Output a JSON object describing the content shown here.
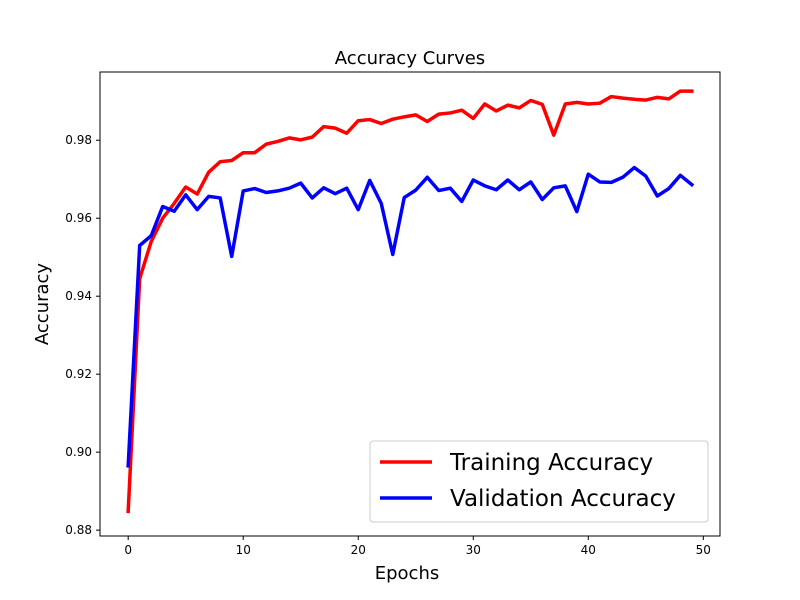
{
  "chart_data": {
    "type": "line",
    "title": "Accuracy Curves",
    "xlabel": "Epochs",
    "ylabel": "Accuracy",
    "xlim": [
      -2.45,
      51.45
    ],
    "ylim": [
      0.8785,
      0.9975
    ],
    "x_ticks": [
      0,
      10,
      20,
      30,
      40,
      50
    ],
    "y_ticks": [
      0.88,
      0.9,
      0.92,
      0.94,
      0.96,
      0.98
    ],
    "y_tick_labels": [
      "0.88",
      "0.90",
      "0.92",
      "0.94",
      "0.96",
      "0.98"
    ],
    "grid": false,
    "legend_position": "lower-right",
    "x": [
      0,
      1,
      2,
      3,
      4,
      5,
      6,
      7,
      8,
      9,
      10,
      11,
      12,
      13,
      14,
      15,
      16,
      17,
      18,
      19,
      20,
      21,
      22,
      23,
      24,
      25,
      26,
      27,
      28,
      29,
      30,
      31,
      32,
      33,
      34,
      35,
      36,
      37,
      38,
      39,
      40,
      41,
      42,
      43,
      44,
      45,
      46,
      47,
      48,
      49
    ],
    "series": [
      {
        "name": "Training Accuracy",
        "color": "#ff0000",
        "values": [
          0.8848,
          0.9445,
          0.954,
          0.96,
          0.9638,
          0.968,
          0.9662,
          0.9718,
          0.9745,
          0.9748,
          0.9768,
          0.9768,
          0.979,
          0.9797,
          0.9806,
          0.9801,
          0.9808,
          0.9835,
          0.9831,
          0.9818,
          0.985,
          0.9853,
          0.9843,
          0.9854,
          0.986,
          0.9865,
          0.9848,
          0.9867,
          0.987,
          0.9877,
          0.9856,
          0.9893,
          0.9875,
          0.989,
          0.9883,
          0.9902,
          0.9892,
          0.9813,
          0.9893,
          0.9897,
          0.9893,
          0.9895,
          0.9912,
          0.9908,
          0.9905,
          0.9903,
          0.991,
          0.9906,
          0.9926,
          0.9926
        ]
      },
      {
        "name": "Validation Accuracy",
        "color": "#0000ff",
        "values": [
          0.8965,
          0.953,
          0.9555,
          0.963,
          0.9618,
          0.966,
          0.9622,
          0.9656,
          0.9652,
          0.9502,
          0.967,
          0.9676,
          0.9666,
          0.967,
          0.9677,
          0.969,
          0.9652,
          0.9678,
          0.9663,
          0.9677,
          0.9622,
          0.9697,
          0.9638,
          0.9507,
          0.9653,
          0.9672,
          0.9705,
          0.9671,
          0.9677,
          0.9643,
          0.9698,
          0.9683,
          0.9673,
          0.9698,
          0.9673,
          0.9693,
          0.9648,
          0.9678,
          0.9683,
          0.9617,
          0.9713,
          0.9693,
          0.9692,
          0.9705,
          0.973,
          0.9708,
          0.9657,
          0.9676,
          0.971,
          0.9686
        ]
      }
    ]
  }
}
